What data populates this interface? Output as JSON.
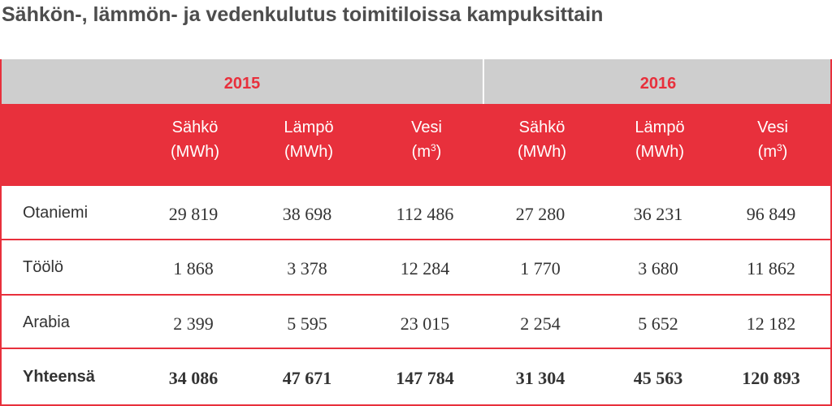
{
  "title": "Sähkön-, lämmön- ja vedenkulutus toimitiloissa kampuksittain",
  "colors": {
    "accent": "#e8303c",
    "header_gray": "#cecece",
    "title": "#4d4d4d"
  },
  "years": [
    "2015",
    "2016"
  ],
  "headers": [
    {
      "name": "Sähkö",
      "unit": "(MWh)"
    },
    {
      "name": "Lämpö",
      "unit": "(MWh)"
    },
    {
      "name": "Vesi",
      "unit_prefix": "(m",
      "unit_sup": "3",
      "unit_suffix": ")"
    },
    {
      "name": "Sähkö",
      "unit": "(MWh)"
    },
    {
      "name": "Lämpö",
      "unit": "(MWh)"
    },
    {
      "name": "Vesi",
      "unit_prefix": "(m",
      "unit_sup": "3",
      "unit_suffix": ")"
    }
  ],
  "rows": [
    {
      "label": "Otaniemi",
      "values": [
        "29 819",
        "38 698",
        "112 486",
        "27 280",
        "36 231",
        "96 849"
      ]
    },
    {
      "label": "Töölö",
      "values": [
        "1 868",
        "3 378",
        "12 284",
        "1 770",
        "3 680",
        "11 862"
      ]
    },
    {
      "label": "Arabia",
      "values": [
        "2 399",
        "5 595",
        "23 015",
        "2 254",
        "5 652",
        "12 182"
      ]
    }
  ],
  "total": {
    "label": "Yhteensä",
    "values": [
      "34 086",
      "47 671",
      "147 784",
      "31 304",
      "45 563",
      "120 893"
    ]
  }
}
